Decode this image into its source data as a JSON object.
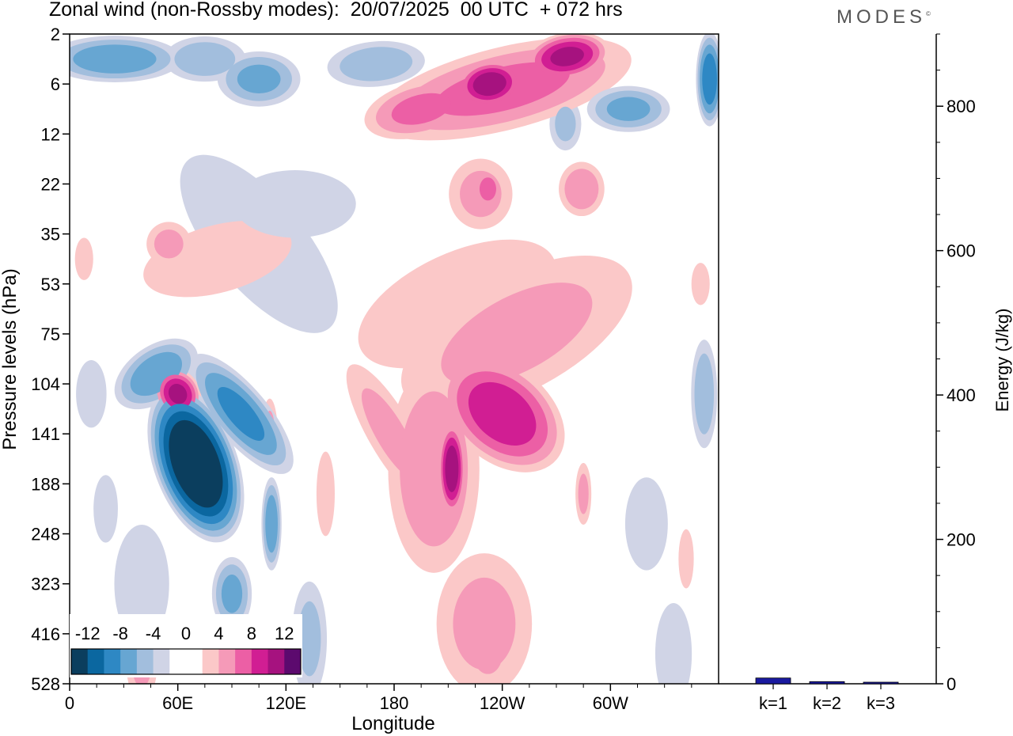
{
  "header": {
    "title": "Zonal wind (non-Rossby modes):  20/07/2025  00 UTC  + 072 hrs",
    "logo_text": "MODES",
    "logo_mark": "©"
  },
  "chart_data": [
    {
      "type": "heatmap",
      "title": "Zonal wind (non-Rossby modes):  20/07/2025  00 UTC  + 072 hrs",
      "xlabel": "Longitude",
      "ylabel": "Pressure levels (hPa)",
      "x_ticks": [
        "0",
        "60E",
        "120E",
        "180",
        "120W",
        "60W"
      ],
      "y_ticks": [
        "2",
        "6",
        "12",
        "22",
        "35",
        "53",
        "75",
        "104",
        "141",
        "188",
        "248",
        "323",
        "416",
        "528"
      ],
      "colorbar": {
        "labels": [
          "-12",
          "-8",
          "-4",
          "0",
          "4",
          "8",
          "12"
        ],
        "colors": [
          "#0b3e5e",
          "#0b67a0",
          "#2e88c4",
          "#67a6d2",
          "#a2bedd",
          "#d0d4e6",
          "#ffffff",
          "#ffffff",
          "#fbc8c8",
          "#f59ab8",
          "#ec5fa5",
          "#d11e93",
          "#a6127f",
          "#5c0a6e"
        ]
      },
      "blobs": [
        {
          "lon": 70,
          "lev": 8.6,
          "rx": 24,
          "ry": 1.7,
          "v": -15,
          "rot": -20
        },
        {
          "lon": 60,
          "lev": 7.2,
          "rx": 13,
          "ry": 0.55,
          "v": 10,
          "rot": -30
        },
        {
          "lon": 48,
          "lev": 6.8,
          "rx": 28,
          "ry": 0.6,
          "v": -7,
          "rot": -35
        },
        {
          "lon": 95,
          "lev": 7.6,
          "rx": 16,
          "ry": 1.6,
          "v": -8,
          "rot": -40
        },
        {
          "lon": 112,
          "lev": 9.8,
          "rx": 6,
          "ry": 1.0,
          "v": -7,
          "rot": 0
        },
        {
          "lon": 90,
          "lev": 11.2,
          "rx": 12,
          "ry": 0.8,
          "v": -6,
          "rot": 0
        },
        {
          "lon": 133,
          "lev": 12.1,
          "rx": 11,
          "ry": 1.3,
          "v": -4,
          "rot": 0
        },
        {
          "lon": 111,
          "lev": 8.0,
          "rx": 5,
          "ry": 0.8,
          "v": 4,
          "rot": 0
        },
        {
          "lon": 105,
          "lev": 4.2,
          "rx": 30,
          "ry": 2.6,
          "v": -3,
          "rot": -40
        },
        {
          "lon": 12,
          "lev": 7.2,
          "rx": 10,
          "ry": 0.8,
          "v": -3,
          "rot": 0
        },
        {
          "lon": 40,
          "lev": 11.0,
          "rx": 18,
          "ry": 1.4,
          "v": -3,
          "rot": 0
        },
        {
          "lon": 40,
          "lev": 12.5,
          "rx": 10,
          "ry": 1.0,
          "v": 4,
          "rot": 0
        },
        {
          "lon": 202,
          "lev": 8.7,
          "rx": 28,
          "ry": 2.3,
          "v": 5,
          "rot": 0
        },
        {
          "lon": 212,
          "lev": 8.7,
          "rx": 8,
          "ry": 1.0,
          "v": 11,
          "rot": 0
        },
        {
          "lon": 240,
          "lev": 7.6,
          "rx": 28,
          "ry": 1.5,
          "v": 9,
          "rot": -50
        },
        {
          "lon": 248,
          "lev": 6.0,
          "rx": 80,
          "ry": 1.3,
          "v": 4,
          "rot": -28
        },
        {
          "lon": 215,
          "lev": 5.4,
          "rx": 70,
          "ry": 1.2,
          "v": 3,
          "rot": -25
        },
        {
          "lon": 230,
          "lev": 11.8,
          "rx": 30,
          "ry": 1.6,
          "v": 4,
          "rot": 0
        },
        {
          "lon": 232,
          "lev": 12.4,
          "rx": 12,
          "ry": 0.6,
          "v": 5,
          "rot": 0
        },
        {
          "lon": 178,
          "lev": 8.0,
          "rx": 14,
          "ry": 1.8,
          "v": 4,
          "rot": -30
        },
        {
          "lon": 142,
          "lev": 9.2,
          "rx": 6,
          "ry": 1.0,
          "v": 3,
          "rot": 0
        },
        {
          "lon": 285,
          "lev": 9.2,
          "rx": 5,
          "ry": 0.7,
          "v": 4,
          "rot": 0
        },
        {
          "lon": 82,
          "lev": 4.5,
          "rx": 50,
          "ry": 0.8,
          "v": 3,
          "rot": -15
        },
        {
          "lon": 55,
          "lev": 4.2,
          "rx": 14,
          "ry": 0.5,
          "v": 4,
          "rot": 0
        },
        {
          "lon": 240,
          "lev": 1.1,
          "rx": 80,
          "ry": 0.9,
          "v": 6,
          "rot": -14
        },
        {
          "lon": 233,
          "lev": 1.0,
          "rx": 20,
          "ry": 0.5,
          "v": 11,
          "rot": -10
        },
        {
          "lon": 276,
          "lev": 0.45,
          "rx": 25,
          "ry": 0.5,
          "v": 10,
          "rot": -10
        },
        {
          "lon": 195,
          "lev": 1.5,
          "rx": 35,
          "ry": 0.6,
          "v": 6,
          "rot": -14
        },
        {
          "lon": 284,
          "lev": 3.1,
          "rx": 14,
          "ry": 0.6,
          "v": 5,
          "rot": 0
        },
        {
          "lon": 170,
          "lev": 0.6,
          "rx": 30,
          "ry": 0.5,
          "v": -5,
          "rot": -5
        },
        {
          "lon": 25,
          "lev": 0.5,
          "rx": 40,
          "ry": 0.5,
          "v": -7,
          "rot": 0
        },
        {
          "lon": 75,
          "lev": 0.5,
          "rx": 25,
          "ry": 0.5,
          "v": -5,
          "rot": 0
        },
        {
          "lon": 105,
          "lev": 0.9,
          "rx": 25,
          "ry": 0.6,
          "v": -6,
          "rot": 0
        },
        {
          "lon": 310,
          "lev": 1.5,
          "rx": 25,
          "ry": 0.5,
          "v": -6,
          "rot": 0
        },
        {
          "lon": 355,
          "lev": 0.9,
          "rx": 8,
          "ry": 1.0,
          "v": -9,
          "rot": 0
        },
        {
          "lon": 275,
          "lev": 1.8,
          "rx": 10,
          "ry": 0.6,
          "v": -4,
          "rot": 0
        },
        {
          "lon": 352,
          "lev": 7.2,
          "rx": 8,
          "ry": 1.2,
          "v": -5,
          "rot": 0
        },
        {
          "lon": 320,
          "lev": 9.8,
          "rx": 14,
          "ry": 1.1,
          "v": -3,
          "rot": 0
        },
        {
          "lon": 335,
          "lev": 12.4,
          "rx": 12,
          "ry": 1.2,
          "v": -3,
          "rot": 0
        },
        {
          "lon": 125,
          "lev": 3.4,
          "rx": 40,
          "ry": 0.8,
          "v": -3,
          "rot": 0
        },
        {
          "lon": 228,
          "lev": 3.2,
          "rx": 20,
          "ry": 0.8,
          "v": 4,
          "rot": 0
        },
        {
          "lon": 232,
          "lev": 3.1,
          "rx": 8,
          "ry": 0.4,
          "v": 7,
          "rot": 0
        },
        {
          "lon": 350,
          "lev": 5.0,
          "rx": 6,
          "ry": 0.5,
          "v": 3,
          "rot": 0
        },
        {
          "lon": 342,
          "lev": 10.5,
          "rx": 5,
          "ry": 0.7,
          "v": 3,
          "rot": 0
        },
        {
          "lon": 8,
          "lev": 4.5,
          "rx": 6,
          "ry": 0.5,
          "v": 3,
          "rot": 0
        },
        {
          "lon": 20,
          "lev": 9.5,
          "rx": 8,
          "ry": 0.8,
          "v": -3,
          "rot": 0
        }
      ]
    },
    {
      "type": "bar",
      "categories": [
        "k=1",
        "k=2",
        "k=3"
      ],
      "values": [
        8,
        3,
        1
      ],
      "xlabel": "",
      "ylabel": "Energy (J/kg)",
      "ylim": [
        0,
        900
      ],
      "y_ticks": [
        "0",
        "200",
        "400",
        "600",
        "800"
      ],
      "bar_color": "#1a1aa0"
    }
  ]
}
